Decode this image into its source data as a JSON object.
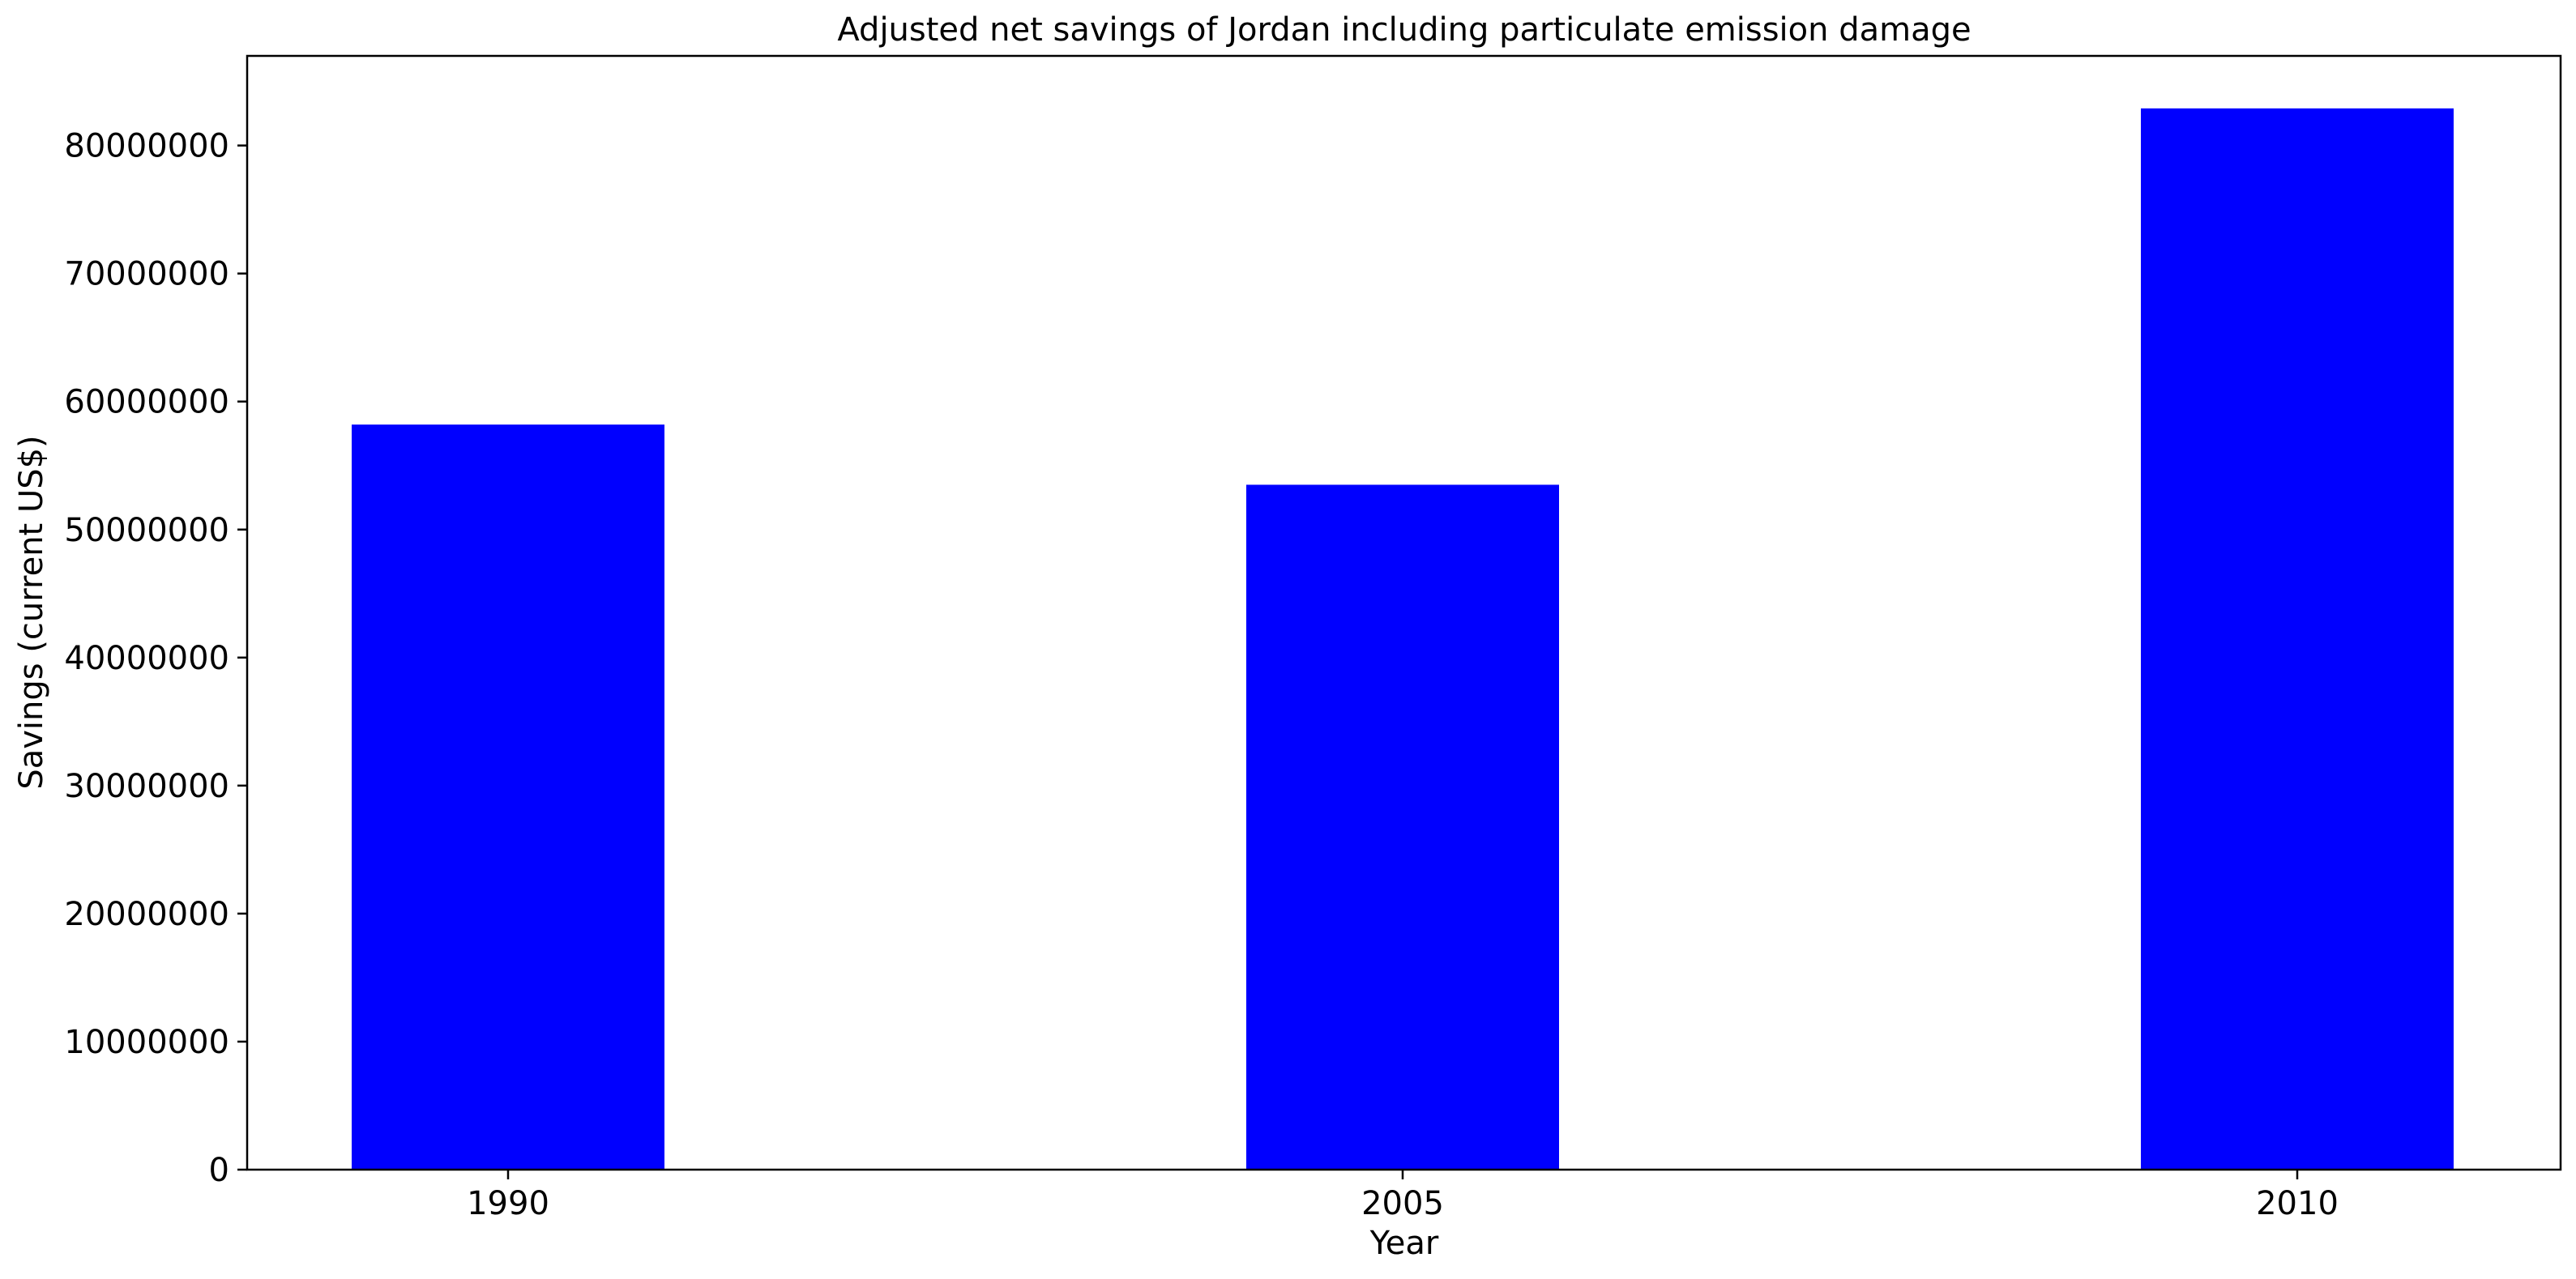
{
  "chart_data": {
    "type": "bar",
    "title": "Adjusted net savings of Jordan including particulate emission damage",
    "xlabel": "Year",
    "ylabel": "Savings (current US$)",
    "categories": [
      "1990",
      "2005",
      "2010"
    ],
    "values": [
      58200000,
      53500000,
      82900000
    ],
    "ylim": [
      0,
      87000000
    ],
    "yticks": [
      0,
      10000000,
      20000000,
      30000000,
      40000000,
      50000000,
      60000000,
      70000000,
      80000000
    ],
    "ytick_labels": [
      "0",
      "10000000",
      "20000000",
      "30000000",
      "40000000",
      "50000000",
      "60000000",
      "70000000",
      "80000000"
    ],
    "bar_color": "#0000ff",
    "grid": false,
    "legend": "none"
  }
}
